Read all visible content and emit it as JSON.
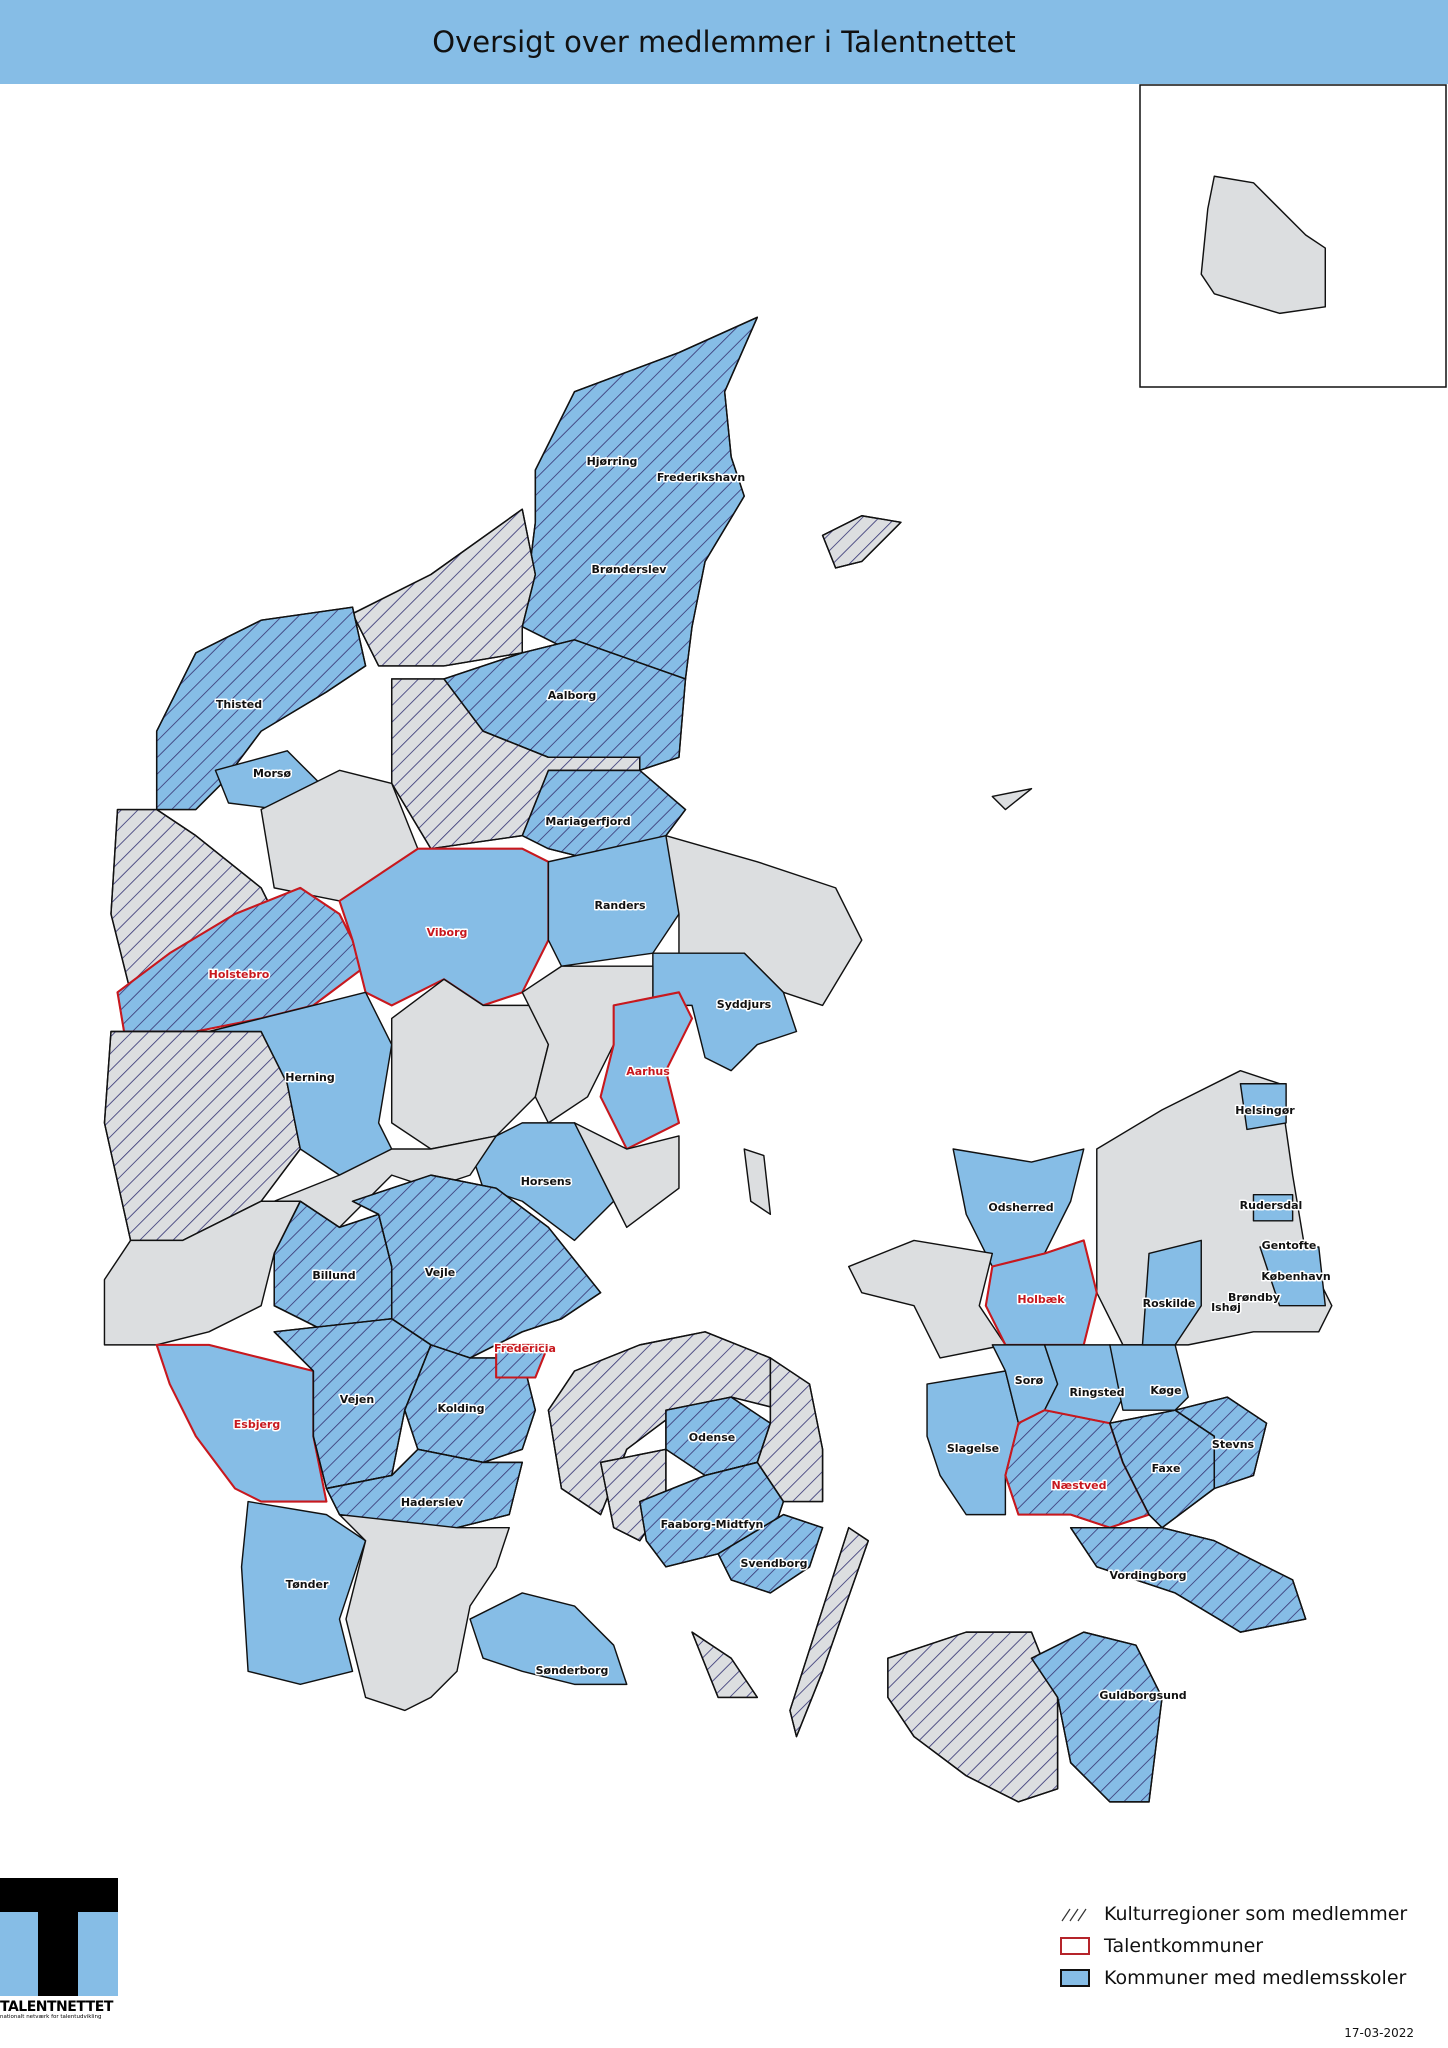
{
  "title": "Oversigt over medlemmer i Talentnettet",
  "colors": {
    "title_bar": "#86bde6",
    "member_municipality": "#86bde6",
    "other_municipality": "#dcdee0",
    "talent_outline": "#c8181e",
    "hatch": "#3b3a78"
  },
  "legend": [
    {
      "label": "Kulturregioner som medlemmer",
      "symbol": "hatch"
    },
    {
      "label": "Talentkommuner",
      "symbol": "red-outline"
    },
    {
      "label": "Kommuner med medlemsskoler",
      "symbol": "blue-fill"
    }
  ],
  "labels": [
    {
      "name": "Hjørring",
      "talent": false
    },
    {
      "name": "Frederikshavn",
      "talent": false
    },
    {
      "name": "Brønderslev",
      "talent": false
    },
    {
      "name": "Aalborg",
      "talent": false
    },
    {
      "name": "Thisted",
      "talent": false
    },
    {
      "name": "Morsø",
      "talent": false
    },
    {
      "name": "Mariagerfjord",
      "talent": false
    },
    {
      "name": "Randers",
      "talent": false
    },
    {
      "name": "Viborg",
      "talent": true
    },
    {
      "name": "Holstebro",
      "talent": true
    },
    {
      "name": "Syddjurs",
      "talent": false
    },
    {
      "name": "Aarhus",
      "talent": true
    },
    {
      "name": "Herning",
      "talent": false
    },
    {
      "name": "Horsens",
      "talent": false
    },
    {
      "name": "Billund",
      "talent": false
    },
    {
      "name": "Vejle",
      "talent": false
    },
    {
      "name": "Fredericia",
      "talent": true
    },
    {
      "name": "Vejen",
      "talent": false
    },
    {
      "name": "Kolding",
      "talent": false
    },
    {
      "name": "Esbjerg",
      "talent": true
    },
    {
      "name": "Haderslev",
      "talent": false
    },
    {
      "name": "Odense",
      "talent": false
    },
    {
      "name": "Faaborg-Midtfyn",
      "talent": false
    },
    {
      "name": "Svendborg",
      "talent": false
    },
    {
      "name": "Tønder",
      "talent": false
    },
    {
      "name": "Sønderborg",
      "talent": false
    },
    {
      "name": "Odsherred",
      "talent": false
    },
    {
      "name": "Holbæk",
      "talent": true
    },
    {
      "name": "Sorø",
      "talent": false
    },
    {
      "name": "Ringsted",
      "talent": false
    },
    {
      "name": "Køge",
      "talent": false
    },
    {
      "name": "Slagelse",
      "talent": false
    },
    {
      "name": "Næstved",
      "talent": true
    },
    {
      "name": "Faxe",
      "talent": false
    },
    {
      "name": "Stevns",
      "talent": false
    },
    {
      "name": "Vordingborg",
      "talent": false
    },
    {
      "name": "Guldborgsund",
      "talent": false
    },
    {
      "name": "Helsingør",
      "talent": false
    },
    {
      "name": "Rudersdal",
      "talent": false
    },
    {
      "name": "Gentofte",
      "talent": false
    },
    {
      "name": "København",
      "talent": false
    },
    {
      "name": "Brøndby",
      "talent": false
    },
    {
      "name": "Ishøj",
      "talent": false
    },
    {
      "name": "Roskilde",
      "talent": false
    }
  ],
  "logo": {
    "name": "TALENTNETTET",
    "tagline": "nationalt netværk for talentudvikling"
  },
  "date": "17-03-2022"
}
